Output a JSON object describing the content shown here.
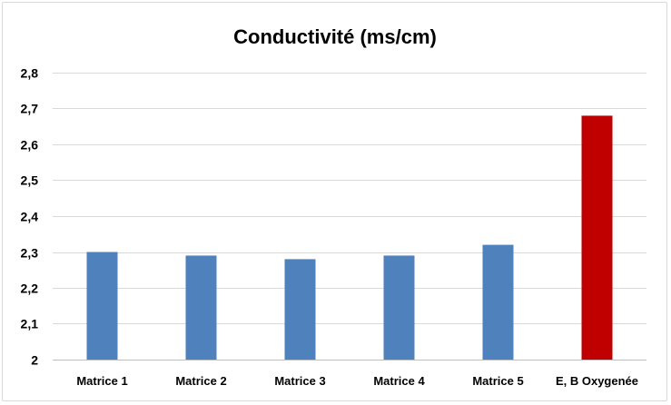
{
  "chart_data": {
    "type": "bar",
    "title": "Conductivité (ms/cm)",
    "xlabel": "",
    "ylabel": "",
    "categories": [
      "Matrice 1",
      "Matrice 2",
      "Matrice 3",
      "Matrice 4",
      "Matrice 5",
      "E, B Oxygenée"
    ],
    "values": [
      2.3,
      2.29,
      2.28,
      2.29,
      2.32,
      2.68
    ],
    "ylim": [
      2,
      2.8
    ],
    "yticks": [
      2,
      2.1,
      2.2,
      2.3,
      2.4,
      2.5,
      2.6,
      2.7,
      2.8
    ],
    "ytick_labels": [
      "2",
      "2,1",
      "2,2",
      "2,3",
      "2,4",
      "2,5",
      "2,6",
      "2,7",
      "2,8"
    ],
    "bar_colors": [
      "#4f81bd",
      "#4f81bd",
      "#4f81bd",
      "#4f81bd",
      "#4f81bd",
      "#c00000"
    ],
    "grid": true,
    "legend": "none"
  }
}
